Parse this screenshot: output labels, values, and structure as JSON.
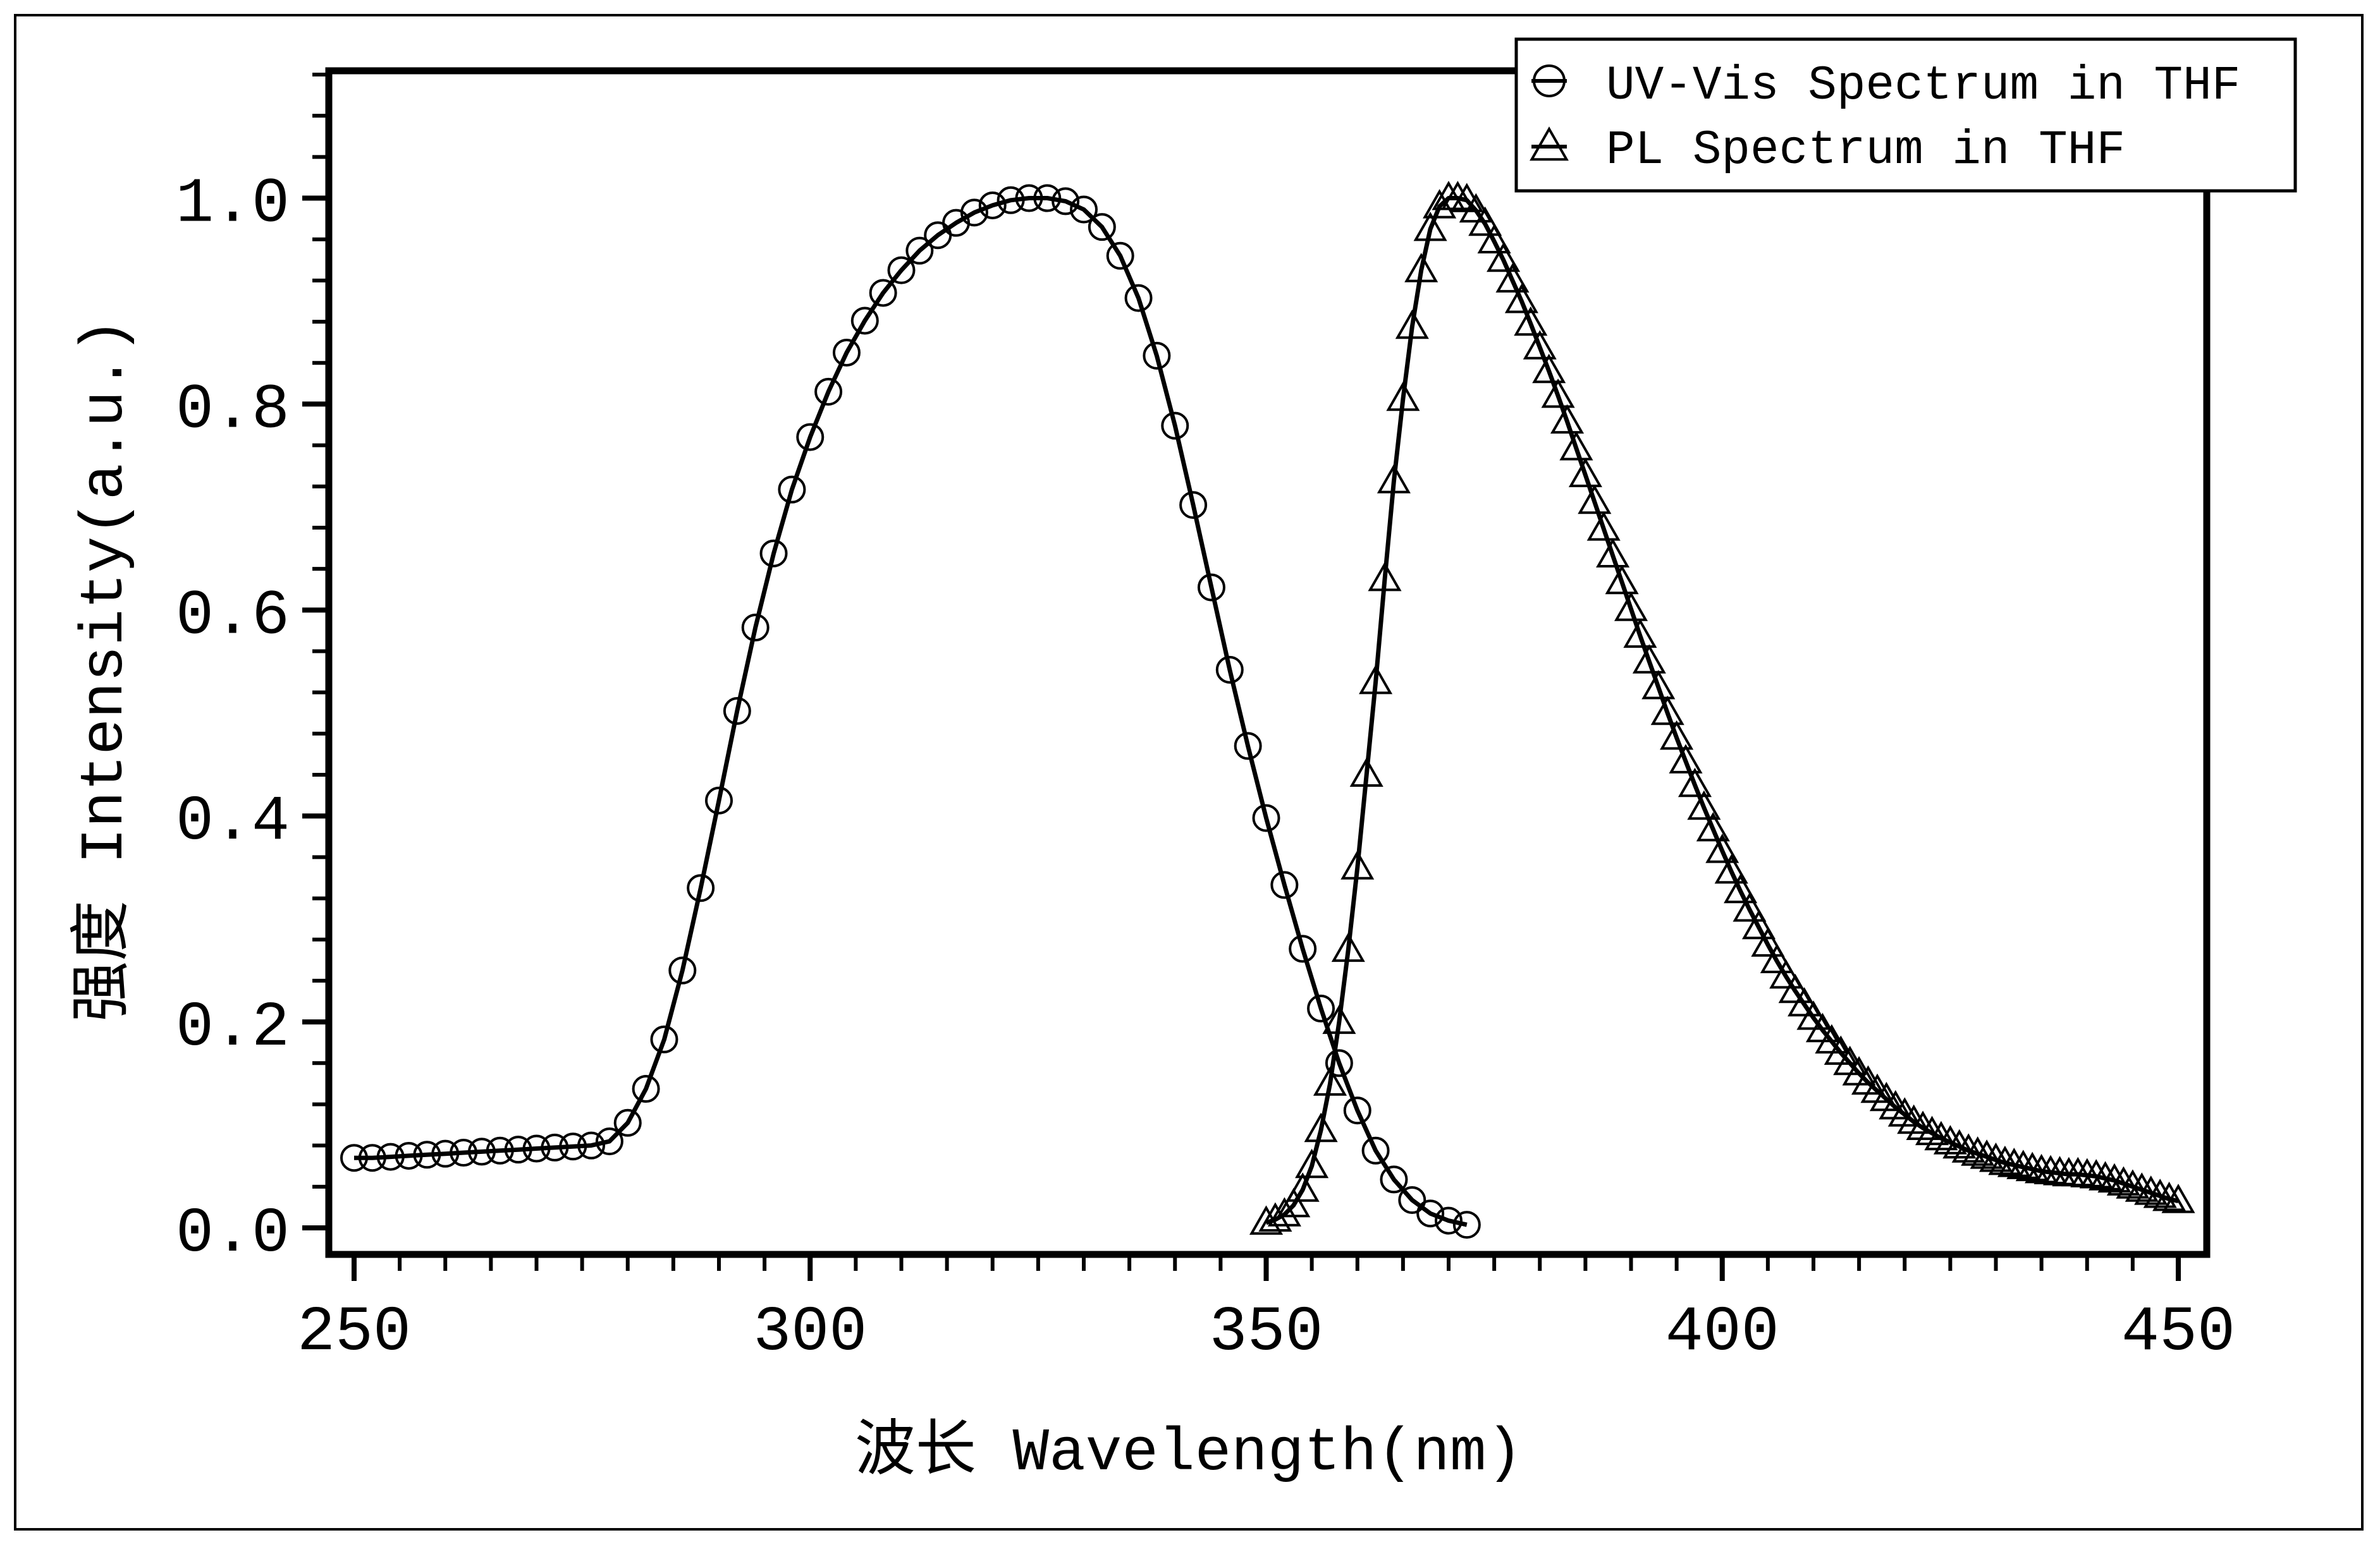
{
  "colors": {
    "line": "#000000",
    "background": "#ffffff"
  },
  "chart_data": {
    "type": "line",
    "title": "",
    "xlabel": "波长 Wavelength(nm)",
    "ylabel": "强度 Intensity(a.u.)",
    "xlim": [
      250,
      450
    ],
    "ylim": [
      0.0,
      1.12
    ],
    "xticks": [
      250,
      300,
      350,
      400,
      450
    ],
    "xtick_labels": [
      "250",
      "300",
      "350",
      "400",
      "450"
    ],
    "yticks": [
      0.0,
      0.2,
      0.4,
      0.6,
      0.8,
      1.0
    ],
    "ytick_labels": [
      "0.0",
      "0.2",
      "0.4",
      "0.6",
      "0.8",
      "1.0"
    ],
    "grid": false,
    "legend_position": "top-right",
    "series": [
      {
        "name": "UV-Vis Spectrum in THF",
        "marker": "circle",
        "x": [
          250,
          252,
          254,
          256,
          258,
          260,
          262,
          264,
          266,
          268,
          270,
          272,
          274,
          276,
          278,
          280,
          282,
          284,
          286,
          288,
          290,
          292,
          294,
          296,
          298,
          300,
          302,
          304,
          306,
          308,
          310,
          312,
          314,
          316,
          318,
          320,
          322,
          324,
          326,
          328,
          330,
          332,
          334,
          336,
          338,
          340,
          342,
          344,
          346,
          348,
          350,
          352,
          354,
          356,
          358,
          360,
          362,
          364,
          366,
          368,
          370,
          372
        ],
        "y": [
          0.068,
          0.068,
          0.069,
          0.07,
          0.071,
          0.072,
          0.073,
          0.074,
          0.075,
          0.076,
          0.077,
          0.078,
          0.079,
          0.08,
          0.084,
          0.102,
          0.135,
          0.183,
          0.25,
          0.33,
          0.415,
          0.502,
          0.583,
          0.655,
          0.717,
          0.768,
          0.812,
          0.85,
          0.881,
          0.908,
          0.93,
          0.949,
          0.964,
          0.976,
          0.986,
          0.993,
          0.998,
          1.0,
          1.0,
          0.997,
          0.989,
          0.972,
          0.944,
          0.903,
          0.847,
          0.779,
          0.702,
          0.622,
          0.542,
          0.468,
          0.398,
          0.333,
          0.271,
          0.213,
          0.16,
          0.114,
          0.075,
          0.047,
          0.027,
          0.014,
          0.007,
          0.003
        ]
      },
      {
        "name": "PL Spectrum in THF",
        "marker": "triangle",
        "x": [
          350,
          351,
          352,
          353,
          354,
          355,
          356,
          357,
          358,
          359,
          360,
          361,
          362,
          363,
          364,
          365,
          366,
          367,
          368,
          369,
          370,
          371,
          372,
          373,
          374,
          375,
          376,
          377,
          378,
          379,
          380,
          381,
          382,
          383,
          384,
          385,
          386,
          387,
          388,
          389,
          390,
          391,
          392,
          393,
          394,
          395,
          396,
          397,
          398,
          399,
          400,
          401,
          402,
          403,
          404,
          405,
          406,
          407,
          408,
          409,
          410,
          411,
          412,
          413,
          414,
          415,
          416,
          417,
          418,
          419,
          420,
          421,
          422,
          423,
          424,
          425,
          426,
          427,
          428,
          429,
          430,
          431,
          432,
          433,
          434,
          435,
          436,
          437,
          438,
          439,
          440,
          441,
          442,
          443,
          444,
          445,
          446,
          447,
          448,
          449,
          450
        ],
        "y": [
          0.005,
          0.008,
          0.013,
          0.022,
          0.037,
          0.06,
          0.095,
          0.14,
          0.2,
          0.27,
          0.35,
          0.44,
          0.53,
          0.63,
          0.725,
          0.805,
          0.875,
          0.93,
          0.97,
          0.992,
          1.0,
          1.0,
          0.998,
          0.988,
          0.975,
          0.958,
          0.94,
          0.92,
          0.9,
          0.878,
          0.855,
          0.832,
          0.808,
          0.783,
          0.757,
          0.731,
          0.705,
          0.679,
          0.653,
          0.627,
          0.601,
          0.575,
          0.55,
          0.525,
          0.5,
          0.476,
          0.453,
          0.43,
          0.408,
          0.387,
          0.366,
          0.346,
          0.327,
          0.309,
          0.292,
          0.275,
          0.259,
          0.244,
          0.23,
          0.217,
          0.204,
          0.192,
          0.181,
          0.17,
          0.16,
          0.15,
          0.141,
          0.133,
          0.125,
          0.117,
          0.11,
          0.103,
          0.097,
          0.092,
          0.087,
          0.083,
          0.079,
          0.075,
          0.072,
          0.069,
          0.066,
          0.063,
          0.061,
          0.059,
          0.057,
          0.055,
          0.054,
          0.053,
          0.052,
          0.052,
          0.051,
          0.05,
          0.048,
          0.046,
          0.043,
          0.04,
          0.037,
          0.034,
          0.031,
          0.028,
          0.026
        ]
      }
    ]
  }
}
